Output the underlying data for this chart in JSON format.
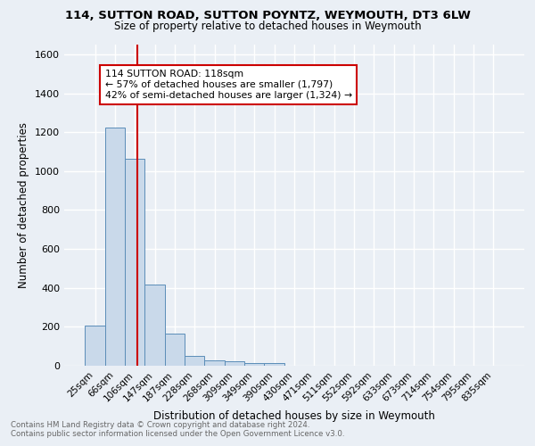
{
  "title1": "114, SUTTON ROAD, SUTTON POYNTZ, WEYMOUTH, DT3 6LW",
  "title2": "Size of property relative to detached houses in Weymouth",
  "xlabel": "Distribution of detached houses by size in Weymouth",
  "ylabel": "Number of detached properties",
  "bin_labels": [
    "25sqm",
    "66sqm",
    "106sqm",
    "147sqm",
    "187sqm",
    "228sqm",
    "268sqm",
    "309sqm",
    "349sqm",
    "390sqm",
    "430sqm",
    "471sqm",
    "511sqm",
    "552sqm",
    "592sqm",
    "633sqm",
    "673sqm",
    "714sqm",
    "754sqm",
    "795sqm",
    "835sqm"
  ],
  "bar_values": [
    205,
    1225,
    1065,
    415,
    165,
    50,
    27,
    22,
    15,
    15,
    0,
    0,
    0,
    0,
    0,
    0,
    0,
    0,
    0,
    0,
    0
  ],
  "bar_color": "#c9d9ea",
  "bar_edge_color": "#5b8db8",
  "vline_x_data": 2.12,
  "vline_color": "#cc0000",
  "annotation_text": "114 SUTTON ROAD: 118sqm\n← 57% of detached houses are smaller (1,797)\n42% of semi-detached houses are larger (1,324) →",
  "annotation_box_color": "#ffffff",
  "annotation_box_edge": "#cc0000",
  "ylim": [
    0,
    1650
  ],
  "yticks": [
    0,
    200,
    400,
    600,
    800,
    1000,
    1200,
    1400,
    1600
  ],
  "footer1": "Contains HM Land Registry data © Crown copyright and database right 2024.",
  "footer2": "Contains public sector information licensed under the Open Government Licence v3.0.",
  "bg_color": "#eaeff5",
  "grid_color": "#ffffff"
}
